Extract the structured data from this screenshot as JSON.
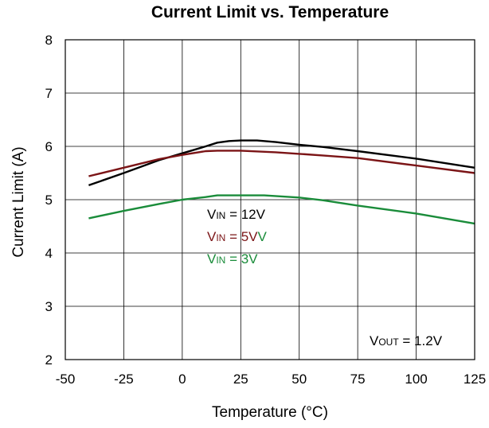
{
  "chart_data": {
    "type": "line",
    "title": "Current Limit vs. Temperature",
    "xlabel": "Temperature (°C)",
    "ylabel": "Current Limit (A)",
    "xlim": [
      -50,
      125
    ],
    "ylim": [
      2,
      8
    ],
    "xticks": [
      -50,
      -25,
      0,
      25,
      50,
      75,
      100,
      125
    ],
    "yticks": [
      2,
      3,
      4,
      5,
      6,
      7,
      8
    ],
    "grid": true,
    "series": [
      {
        "name": "VIN = 12V",
        "color": "#000000",
        "x": [
          -40,
          -25,
          -10,
          0,
          10,
          15,
          20,
          25,
          32,
          40,
          50,
          60,
          75,
          100,
          125
        ],
        "y": [
          5.27,
          5.5,
          5.74,
          5.87,
          6.0,
          6.07,
          6.1,
          6.11,
          6.11,
          6.08,
          6.03,
          5.99,
          5.91,
          5.77,
          5.6
        ]
      },
      {
        "name": "VIN = 5V",
        "color": "#7b1416",
        "x": [
          -40,
          -25,
          -10,
          0,
          10,
          15,
          25,
          40,
          50,
          60,
          75,
          100,
          125
        ],
        "y": [
          5.44,
          5.6,
          5.76,
          5.84,
          5.91,
          5.92,
          5.92,
          5.89,
          5.86,
          5.83,
          5.78,
          5.64,
          5.5
        ]
      },
      {
        "name": "VIN = 3V",
        "color": "#1a8c3a",
        "x": [
          -40,
          -25,
          -10,
          0,
          10,
          15,
          25,
          35,
          50,
          60,
          75,
          100,
          125
        ],
        "y": [
          4.65,
          4.79,
          4.92,
          5.0,
          5.05,
          5.08,
          5.08,
          5.08,
          5.04,
          4.99,
          4.89,
          4.74,
          4.55
        ]
      }
    ],
    "annotations": {
      "vin12": {
        "pre": "V",
        "sub": "IN",
        "post": " = 12V"
      },
      "vin5": {
        "pre": "V",
        "sub": "IN",
        "post": " = 5V",
        "extra": "V"
      },
      "vin3": {
        "pre": "V",
        "sub": "IN",
        "post": " = 3V"
      },
      "vout": {
        "pre": "V",
        "sub": "OUT",
        "post": " = 1.2V"
      }
    },
    "colors": {
      "vin12": "#000000",
      "vin5": "#7b1416",
      "vin3": "#1a8c3a",
      "extra_v": "#1a8c3a"
    }
  }
}
